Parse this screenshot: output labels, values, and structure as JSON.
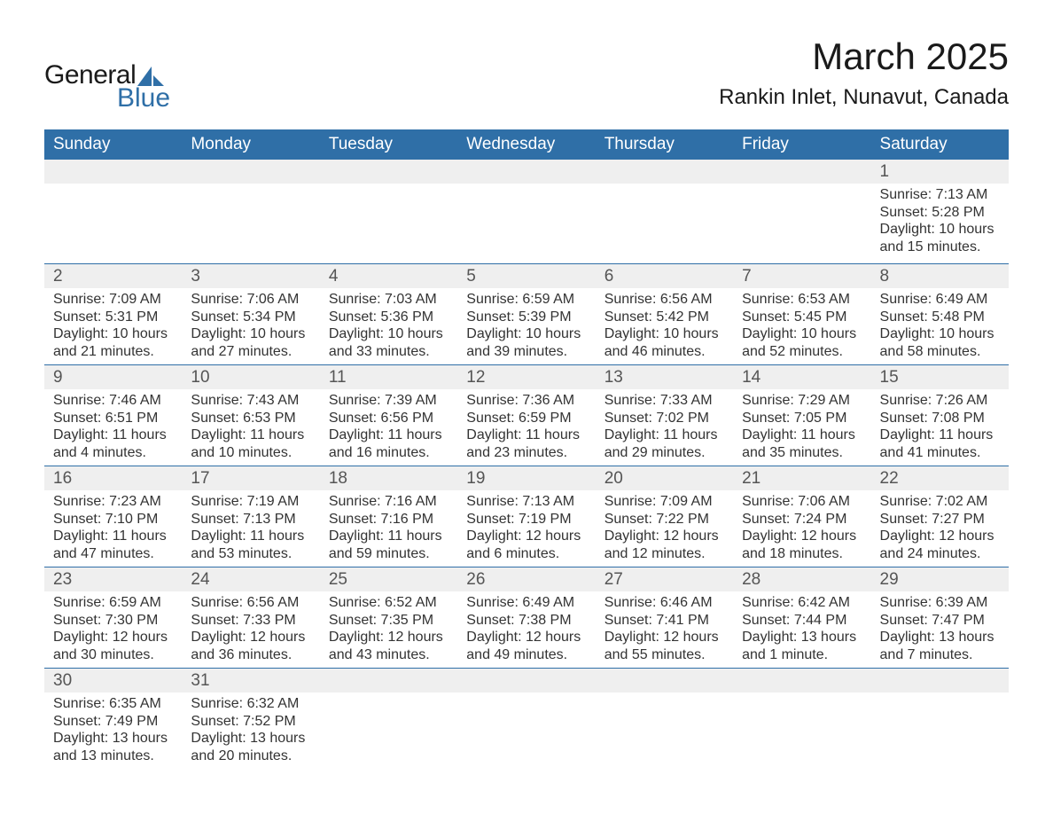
{
  "logo": {
    "word1": "General",
    "word2": "Blue",
    "sail_color": "#2f6fa7",
    "text1_color": "#1a1a1a",
    "text2_color": "#2f6fa7"
  },
  "title": {
    "month": "March 2025",
    "location": "Rankin Inlet, Nunavut, Canada"
  },
  "colors": {
    "header_bg": "#2f6fa7",
    "header_text": "#ffffff",
    "row_border": "#2f6fa7",
    "daynum_bg": "#efefef",
    "text": "#333333"
  },
  "weekdays": [
    "Sunday",
    "Monday",
    "Tuesday",
    "Wednesday",
    "Thursday",
    "Friday",
    "Saturday"
  ],
  "weeks": [
    {
      "first": true,
      "days": [
        {
          "num": "",
          "sunrise": "",
          "sunset": "",
          "daylight1": "",
          "daylight2": ""
        },
        {
          "num": "",
          "sunrise": "",
          "sunset": "",
          "daylight1": "",
          "daylight2": ""
        },
        {
          "num": "",
          "sunrise": "",
          "sunset": "",
          "daylight1": "",
          "daylight2": ""
        },
        {
          "num": "",
          "sunrise": "",
          "sunset": "",
          "daylight1": "",
          "daylight2": ""
        },
        {
          "num": "",
          "sunrise": "",
          "sunset": "",
          "daylight1": "",
          "daylight2": ""
        },
        {
          "num": "",
          "sunrise": "",
          "sunset": "",
          "daylight1": "",
          "daylight2": ""
        },
        {
          "num": "1",
          "sunrise": "Sunrise: 7:13 AM",
          "sunset": "Sunset: 5:28 PM",
          "daylight1": "Daylight: 10 hours",
          "daylight2": "and 15 minutes."
        }
      ],
      "tall": true
    },
    {
      "days": [
        {
          "num": "2",
          "sunrise": "Sunrise: 7:09 AM",
          "sunset": "Sunset: 5:31 PM",
          "daylight1": "Daylight: 10 hours",
          "daylight2": "and 21 minutes."
        },
        {
          "num": "3",
          "sunrise": "Sunrise: 7:06 AM",
          "sunset": "Sunset: 5:34 PM",
          "daylight1": "Daylight: 10 hours",
          "daylight2": "and 27 minutes."
        },
        {
          "num": "4",
          "sunrise": "Sunrise: 7:03 AM",
          "sunset": "Sunset: 5:36 PM",
          "daylight1": "Daylight: 10 hours",
          "daylight2": "and 33 minutes."
        },
        {
          "num": "5",
          "sunrise": "Sunrise: 6:59 AM",
          "sunset": "Sunset: 5:39 PM",
          "daylight1": "Daylight: 10 hours",
          "daylight2": "and 39 minutes."
        },
        {
          "num": "6",
          "sunrise": "Sunrise: 6:56 AM",
          "sunset": "Sunset: 5:42 PM",
          "daylight1": "Daylight: 10 hours",
          "daylight2": "and 46 minutes."
        },
        {
          "num": "7",
          "sunrise": "Sunrise: 6:53 AM",
          "sunset": "Sunset: 5:45 PM",
          "daylight1": "Daylight: 10 hours",
          "daylight2": "and 52 minutes."
        },
        {
          "num": "8",
          "sunrise": "Sunrise: 6:49 AM",
          "sunset": "Sunset: 5:48 PM",
          "daylight1": "Daylight: 10 hours",
          "daylight2": "and 58 minutes."
        }
      ]
    },
    {
      "days": [
        {
          "num": "9",
          "sunrise": "Sunrise: 7:46 AM",
          "sunset": "Sunset: 6:51 PM",
          "daylight1": "Daylight: 11 hours",
          "daylight2": "and 4 minutes."
        },
        {
          "num": "10",
          "sunrise": "Sunrise: 7:43 AM",
          "sunset": "Sunset: 6:53 PM",
          "daylight1": "Daylight: 11 hours",
          "daylight2": "and 10 minutes."
        },
        {
          "num": "11",
          "sunrise": "Sunrise: 7:39 AM",
          "sunset": "Sunset: 6:56 PM",
          "daylight1": "Daylight: 11 hours",
          "daylight2": "and 16 minutes."
        },
        {
          "num": "12",
          "sunrise": "Sunrise: 7:36 AM",
          "sunset": "Sunset: 6:59 PM",
          "daylight1": "Daylight: 11 hours",
          "daylight2": "and 23 minutes."
        },
        {
          "num": "13",
          "sunrise": "Sunrise: 7:33 AM",
          "sunset": "Sunset: 7:02 PM",
          "daylight1": "Daylight: 11 hours",
          "daylight2": "and 29 minutes."
        },
        {
          "num": "14",
          "sunrise": "Sunrise: 7:29 AM",
          "sunset": "Sunset: 7:05 PM",
          "daylight1": "Daylight: 11 hours",
          "daylight2": "and 35 minutes."
        },
        {
          "num": "15",
          "sunrise": "Sunrise: 7:26 AM",
          "sunset": "Sunset: 7:08 PM",
          "daylight1": "Daylight: 11 hours",
          "daylight2": "and 41 minutes."
        }
      ]
    },
    {
      "days": [
        {
          "num": "16",
          "sunrise": "Sunrise: 7:23 AM",
          "sunset": "Sunset: 7:10 PM",
          "daylight1": "Daylight: 11 hours",
          "daylight2": "and 47 minutes."
        },
        {
          "num": "17",
          "sunrise": "Sunrise: 7:19 AM",
          "sunset": "Sunset: 7:13 PM",
          "daylight1": "Daylight: 11 hours",
          "daylight2": "and 53 minutes."
        },
        {
          "num": "18",
          "sunrise": "Sunrise: 7:16 AM",
          "sunset": "Sunset: 7:16 PM",
          "daylight1": "Daylight: 11 hours",
          "daylight2": "and 59 minutes."
        },
        {
          "num": "19",
          "sunrise": "Sunrise: 7:13 AM",
          "sunset": "Sunset: 7:19 PM",
          "daylight1": "Daylight: 12 hours",
          "daylight2": "and 6 minutes."
        },
        {
          "num": "20",
          "sunrise": "Sunrise: 7:09 AM",
          "sunset": "Sunset: 7:22 PM",
          "daylight1": "Daylight: 12 hours",
          "daylight2": "and 12 minutes."
        },
        {
          "num": "21",
          "sunrise": "Sunrise: 7:06 AM",
          "sunset": "Sunset: 7:24 PM",
          "daylight1": "Daylight: 12 hours",
          "daylight2": "and 18 minutes."
        },
        {
          "num": "22",
          "sunrise": "Sunrise: 7:02 AM",
          "sunset": "Sunset: 7:27 PM",
          "daylight1": "Daylight: 12 hours",
          "daylight2": "and 24 minutes."
        }
      ]
    },
    {
      "days": [
        {
          "num": "23",
          "sunrise": "Sunrise: 6:59 AM",
          "sunset": "Sunset: 7:30 PM",
          "daylight1": "Daylight: 12 hours",
          "daylight2": "and 30 minutes."
        },
        {
          "num": "24",
          "sunrise": "Sunrise: 6:56 AM",
          "sunset": "Sunset: 7:33 PM",
          "daylight1": "Daylight: 12 hours",
          "daylight2": "and 36 minutes."
        },
        {
          "num": "25",
          "sunrise": "Sunrise: 6:52 AM",
          "sunset": "Sunset: 7:35 PM",
          "daylight1": "Daylight: 12 hours",
          "daylight2": "and 43 minutes."
        },
        {
          "num": "26",
          "sunrise": "Sunrise: 6:49 AM",
          "sunset": "Sunset: 7:38 PM",
          "daylight1": "Daylight: 12 hours",
          "daylight2": "and 49 minutes."
        },
        {
          "num": "27",
          "sunrise": "Sunrise: 6:46 AM",
          "sunset": "Sunset: 7:41 PM",
          "daylight1": "Daylight: 12 hours",
          "daylight2": "and 55 minutes."
        },
        {
          "num": "28",
          "sunrise": "Sunrise: 6:42 AM",
          "sunset": "Sunset: 7:44 PM",
          "daylight1": "Daylight: 13 hours",
          "daylight2": "and 1 minute."
        },
        {
          "num": "29",
          "sunrise": "Sunrise: 6:39 AM",
          "sunset": "Sunset: 7:47 PM",
          "daylight1": "Daylight: 13 hours",
          "daylight2": "and 7 minutes."
        }
      ]
    },
    {
      "days": [
        {
          "num": "30",
          "sunrise": "Sunrise: 6:35 AM",
          "sunset": "Sunset: 7:49 PM",
          "daylight1": "Daylight: 13 hours",
          "daylight2": "and 13 minutes."
        },
        {
          "num": "31",
          "sunrise": "Sunrise: 6:32 AM",
          "sunset": "Sunset: 7:52 PM",
          "daylight1": "Daylight: 13 hours",
          "daylight2": "and 20 minutes."
        },
        {
          "num": "",
          "sunrise": "",
          "sunset": "",
          "daylight1": "",
          "daylight2": ""
        },
        {
          "num": "",
          "sunrise": "",
          "sunset": "",
          "daylight1": "",
          "daylight2": ""
        },
        {
          "num": "",
          "sunrise": "",
          "sunset": "",
          "daylight1": "",
          "daylight2": ""
        },
        {
          "num": "",
          "sunrise": "",
          "sunset": "",
          "daylight1": "",
          "daylight2": ""
        },
        {
          "num": "",
          "sunrise": "",
          "sunset": "",
          "daylight1": "",
          "daylight2": ""
        }
      ]
    }
  ]
}
